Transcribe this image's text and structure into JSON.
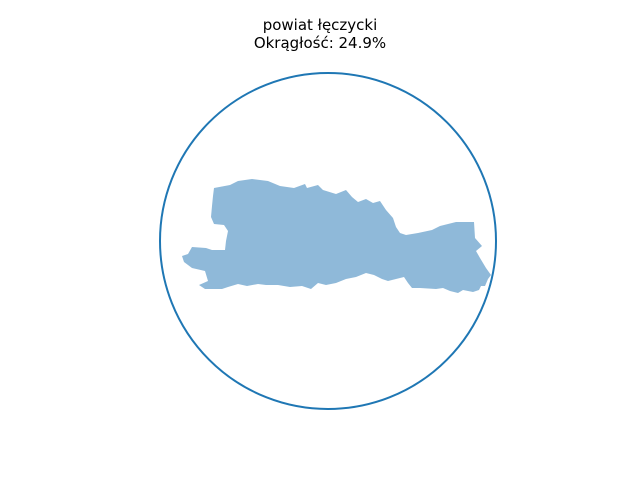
{
  "figure": {
    "title": "powiat łęczycki",
    "subtitle": "Okrągłość: 24.9%",
    "circle_color": "#1f77b4",
    "shape_color": "#8fb9d9"
  }
}
